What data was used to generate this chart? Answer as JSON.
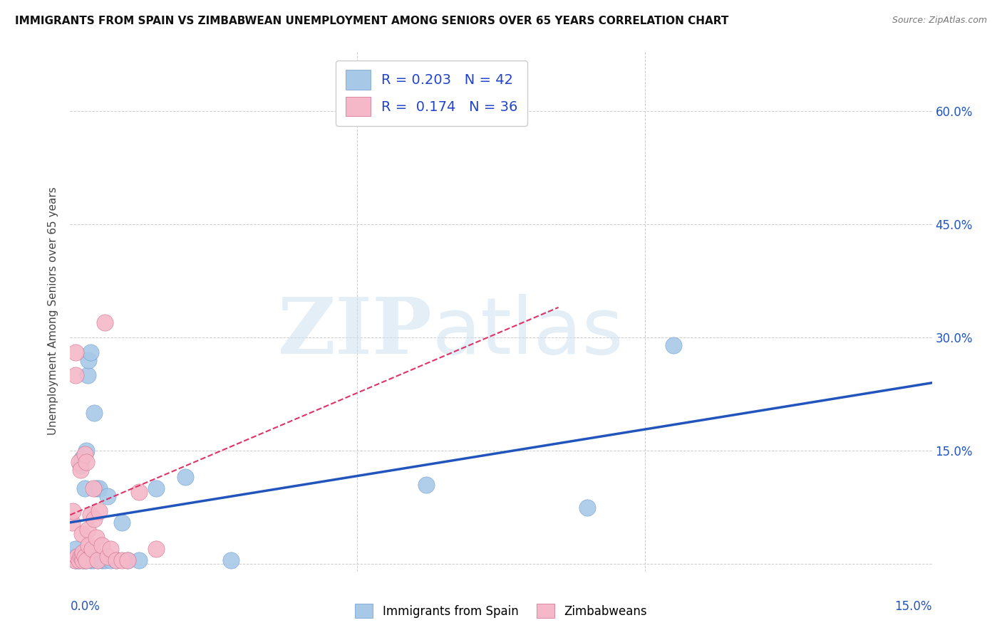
{
  "title": "IMMIGRANTS FROM SPAIN VS ZIMBABWEAN UNEMPLOYMENT AMONG SENIORS OVER 65 YEARS CORRELATION CHART",
  "source": "Source: ZipAtlas.com",
  "ylabel": "Unemployment Among Seniors over 65 years",
  "y_ticks": [
    0.0,
    0.15,
    0.3,
    0.45,
    0.6
  ],
  "y_tick_labels": [
    "",
    "15.0%",
    "30.0%",
    "45.0%",
    "60.0%"
  ],
  "x_lim": [
    0.0,
    0.15
  ],
  "y_lim": [
    -0.01,
    0.68
  ],
  "legend_r1": "R = 0.203",
  "legend_n1": "N = 42",
  "legend_r2": "R =  0.174",
  "legend_n2": "N = 36",
  "color_blue": "#a8c8e8",
  "color_pink": "#f5b8c8",
  "line_blue": "#2255bb",
  "line_pink": "#dd3366",
  "spain_x": [
    0.0008,
    0.001,
    0.001,
    0.0012,
    0.0015,
    0.0015,
    0.0018,
    0.0018,
    0.002,
    0.002,
    0.0022,
    0.0022,
    0.0025,
    0.0025,
    0.0025,
    0.0028,
    0.0028,
    0.003,
    0.003,
    0.0032,
    0.0035,
    0.0035,
    0.0038,
    0.004,
    0.0042,
    0.0045,
    0.0048,
    0.005,
    0.0055,
    0.006,
    0.0065,
    0.007,
    0.008,
    0.009,
    0.01,
    0.012,
    0.015,
    0.02,
    0.028,
    0.062,
    0.09,
    0.105
  ],
  "spain_y": [
    0.01,
    0.005,
    0.02,
    0.005,
    0.01,
    0.005,
    0.13,
    0.01,
    0.14,
    0.01,
    0.005,
    0.01,
    0.015,
    0.1,
    0.005,
    0.15,
    0.005,
    0.25,
    0.01,
    0.27,
    0.005,
    0.28,
    0.01,
    0.005,
    0.2,
    0.1,
    0.005,
    0.1,
    0.005,
    0.005,
    0.09,
    0.005,
    0.005,
    0.055,
    0.005,
    0.005,
    0.1,
    0.115,
    0.005,
    0.105,
    0.075,
    0.29
  ],
  "zimb_x": [
    0.0003,
    0.0005,
    0.0008,
    0.001,
    0.001,
    0.0012,
    0.0015,
    0.0015,
    0.0018,
    0.0018,
    0.002,
    0.002,
    0.0022,
    0.0022,
    0.0025,
    0.0025,
    0.0028,
    0.0028,
    0.003,
    0.0032,
    0.0035,
    0.0038,
    0.004,
    0.0042,
    0.0045,
    0.0048,
    0.005,
    0.0055,
    0.006,
    0.0065,
    0.007,
    0.008,
    0.009,
    0.01,
    0.012,
    0.015
  ],
  "zimb_y": [
    0.055,
    0.07,
    0.005,
    0.25,
    0.28,
    0.01,
    0.135,
    0.005,
    0.125,
    0.01,
    0.04,
    0.01,
    0.005,
    0.015,
    0.145,
    0.01,
    0.135,
    0.005,
    0.045,
    0.025,
    0.065,
    0.02,
    0.1,
    0.06,
    0.035,
    0.005,
    0.07,
    0.025,
    0.32,
    0.01,
    0.02,
    0.005,
    0.005,
    0.005,
    0.095,
    0.02
  ],
  "spain_trend_x": [
    0.0,
    0.15
  ],
  "spain_trend_y": [
    0.055,
    0.24
  ],
  "zimb_trend_x": [
    0.0,
    0.085
  ],
  "zimb_trend_y": [
    0.065,
    0.34
  ]
}
